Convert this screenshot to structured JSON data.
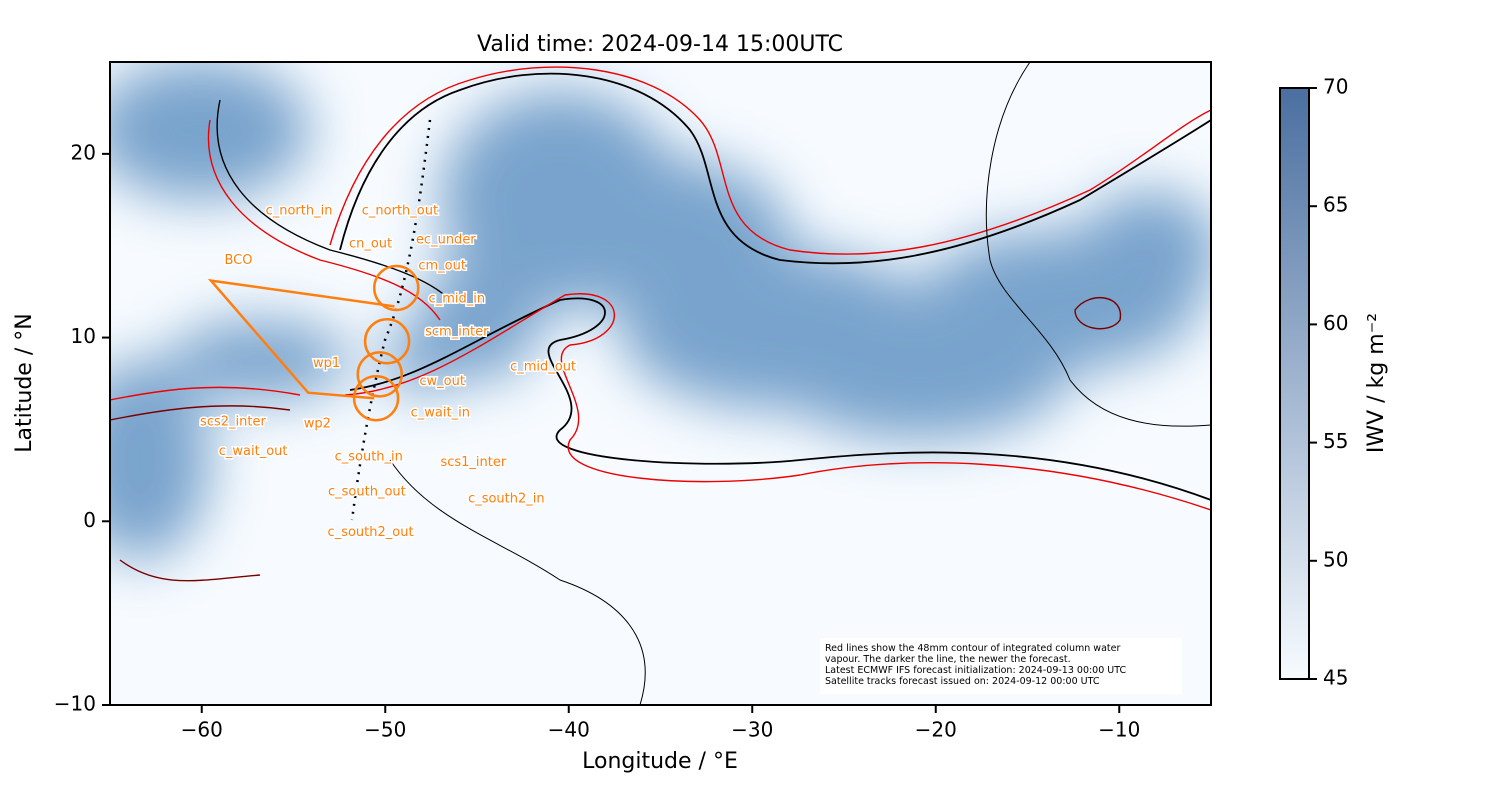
{
  "chart_data": {
    "type": "map",
    "title": "Valid time: 2024-09-14 15:00UTC",
    "x_label": "Longitude / °E",
    "y_label": "Latitude / °N",
    "xlim": [
      -65,
      -5
    ],
    "ylim": [
      -10,
      25
    ],
    "xticks": [
      {
        "value": -60,
        "label": "−60"
      },
      {
        "value": -50,
        "label": "−50"
      },
      {
        "value": -40,
        "label": "−40"
      },
      {
        "value": -30,
        "label": "−30"
      },
      {
        "value": -20,
        "label": "−20"
      },
      {
        "value": -10,
        "label": "−10"
      }
    ],
    "yticks": [
      {
        "value": -10,
        "label": "−10"
      },
      0,
      10,
      20
    ],
    "colorbar": {
      "label": "IWV / kg m⁻²",
      "lim": [
        45,
        70
      ],
      "ticks": [
        45,
        50,
        55,
        60,
        65,
        70
      ],
      "color_low": "#f7fbff",
      "color_high": "#4a6fa0"
    },
    "marker_color": "#ff7f0e",
    "track": {
      "lon": [
        -49.5,
        -59.5,
        -54.2,
        -50.6
      ],
      "lat": [
        11.7,
        13.1,
        7.0,
        6.7
      ]
    },
    "circles": {
      "lon": [
        -49.4,
        -49.9,
        -50.3,
        -50.5
      ],
      "lat": [
        12.7,
        9.8,
        8.0,
        6.7
      ]
    },
    "waypoints": {
      "labels": [
        "c_north_in",
        "c_north_out",
        "cn_out",
        "ec_under",
        "BCO",
        "cm_out",
        "c_mid_in",
        "scm_inter",
        "wp1",
        "c_mid_out",
        "cw_out",
        "scs2_inter",
        "c_wait_in",
        "wp2",
        "c_wait_out",
        "c_south_in",
        "scs1_inter",
        "c_south_out",
        "c_south2_in",
        "c_south2_out"
      ],
      "lon": [
        -54.7,
        -49.2,
        -50.8,
        -46.7,
        -58.0,
        -46.9,
        -46.1,
        -46.1,
        -53.2,
        -41.4,
        -46.9,
        -58.3,
        -47.0,
        -53.7,
        -57.2,
        -50.9,
        -45.2,
        -51.0,
        -43.4,
        -50.8
      ],
      "lat": [
        16.9,
        16.9,
        15.1,
        15.3,
        14.2,
        13.9,
        12.1,
        10.3,
        8.6,
        8.4,
        7.6,
        5.4,
        5.9,
        5.3,
        3.8,
        3.5,
        3.2,
        1.6,
        1.2,
        -0.6
      ]
    },
    "note": [
      "Red lines show the 48mm contour of integrated column water",
      "vapour. The darker the line, the newer the forecast.",
      "Latest ECMWF IFS forecast initialization: 2024-09-13 00:00 UTC",
      "Satellite tracks forecast issued on: 2024-09-12 00:00 UTC"
    ]
  }
}
